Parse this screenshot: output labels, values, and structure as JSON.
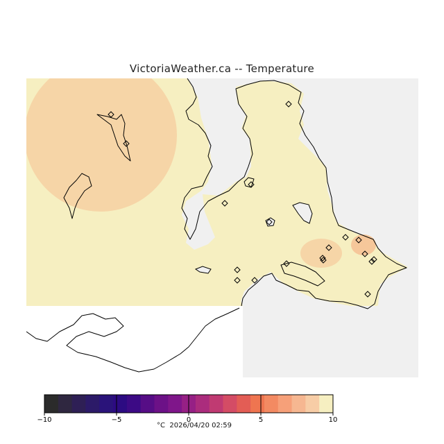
{
  "title": "VictoriaWeather.ca -- Temperature",
  "footer": {
    "unit": "°C",
    "timestamp": "2026/04/20 02:59"
  },
  "colorbar": {
    "min": -10,
    "max": 10,
    "tick_labels": [
      "−10",
      "−5",
      "0",
      "5",
      "10"
    ],
    "tick_values": [
      -10,
      -5,
      0,
      5,
      10
    ],
    "colors": [
      "#2b2b2b",
      "#2f2740",
      "#2e1f55",
      "#2c1a68",
      "#2a137a",
      "#2c0b82",
      "#3c0a85",
      "#560d86",
      "#6c1187",
      "#7f168a",
      "#962085",
      "#ab2c7d",
      "#c03a72",
      "#d44c65",
      "#e35d55",
      "#ef7550",
      "#f38a62",
      "#f6a079",
      "#f6b791",
      "#f7cda6",
      "#f6efc1"
    ]
  },
  "map": {
    "background_color": "#f0f0f0",
    "no_data_color": "#ffffff",
    "base_temperature_color": "#f6efc1",
    "warm_area_color": "#f6d5a7",
    "warm_spot_color": "#f6c79a",
    "coastline_color": "#000000",
    "station_marker": "diamond-icon"
  },
  "stations": [
    {
      "id": "s1"
    },
    {
      "id": "s2"
    },
    {
      "id": "s3"
    },
    {
      "id": "s4"
    },
    {
      "id": "s5"
    },
    {
      "id": "s6"
    },
    {
      "id": "s7"
    },
    {
      "id": "s8"
    },
    {
      "id": "s9"
    },
    {
      "id": "s10"
    },
    {
      "id": "s11"
    },
    {
      "id": "s12"
    },
    {
      "id": "s13"
    },
    {
      "id": "s14"
    },
    {
      "id": "s15"
    },
    {
      "id": "s16"
    },
    {
      "id": "s17"
    },
    {
      "id": "s18"
    },
    {
      "id": "s19"
    }
  ]
}
